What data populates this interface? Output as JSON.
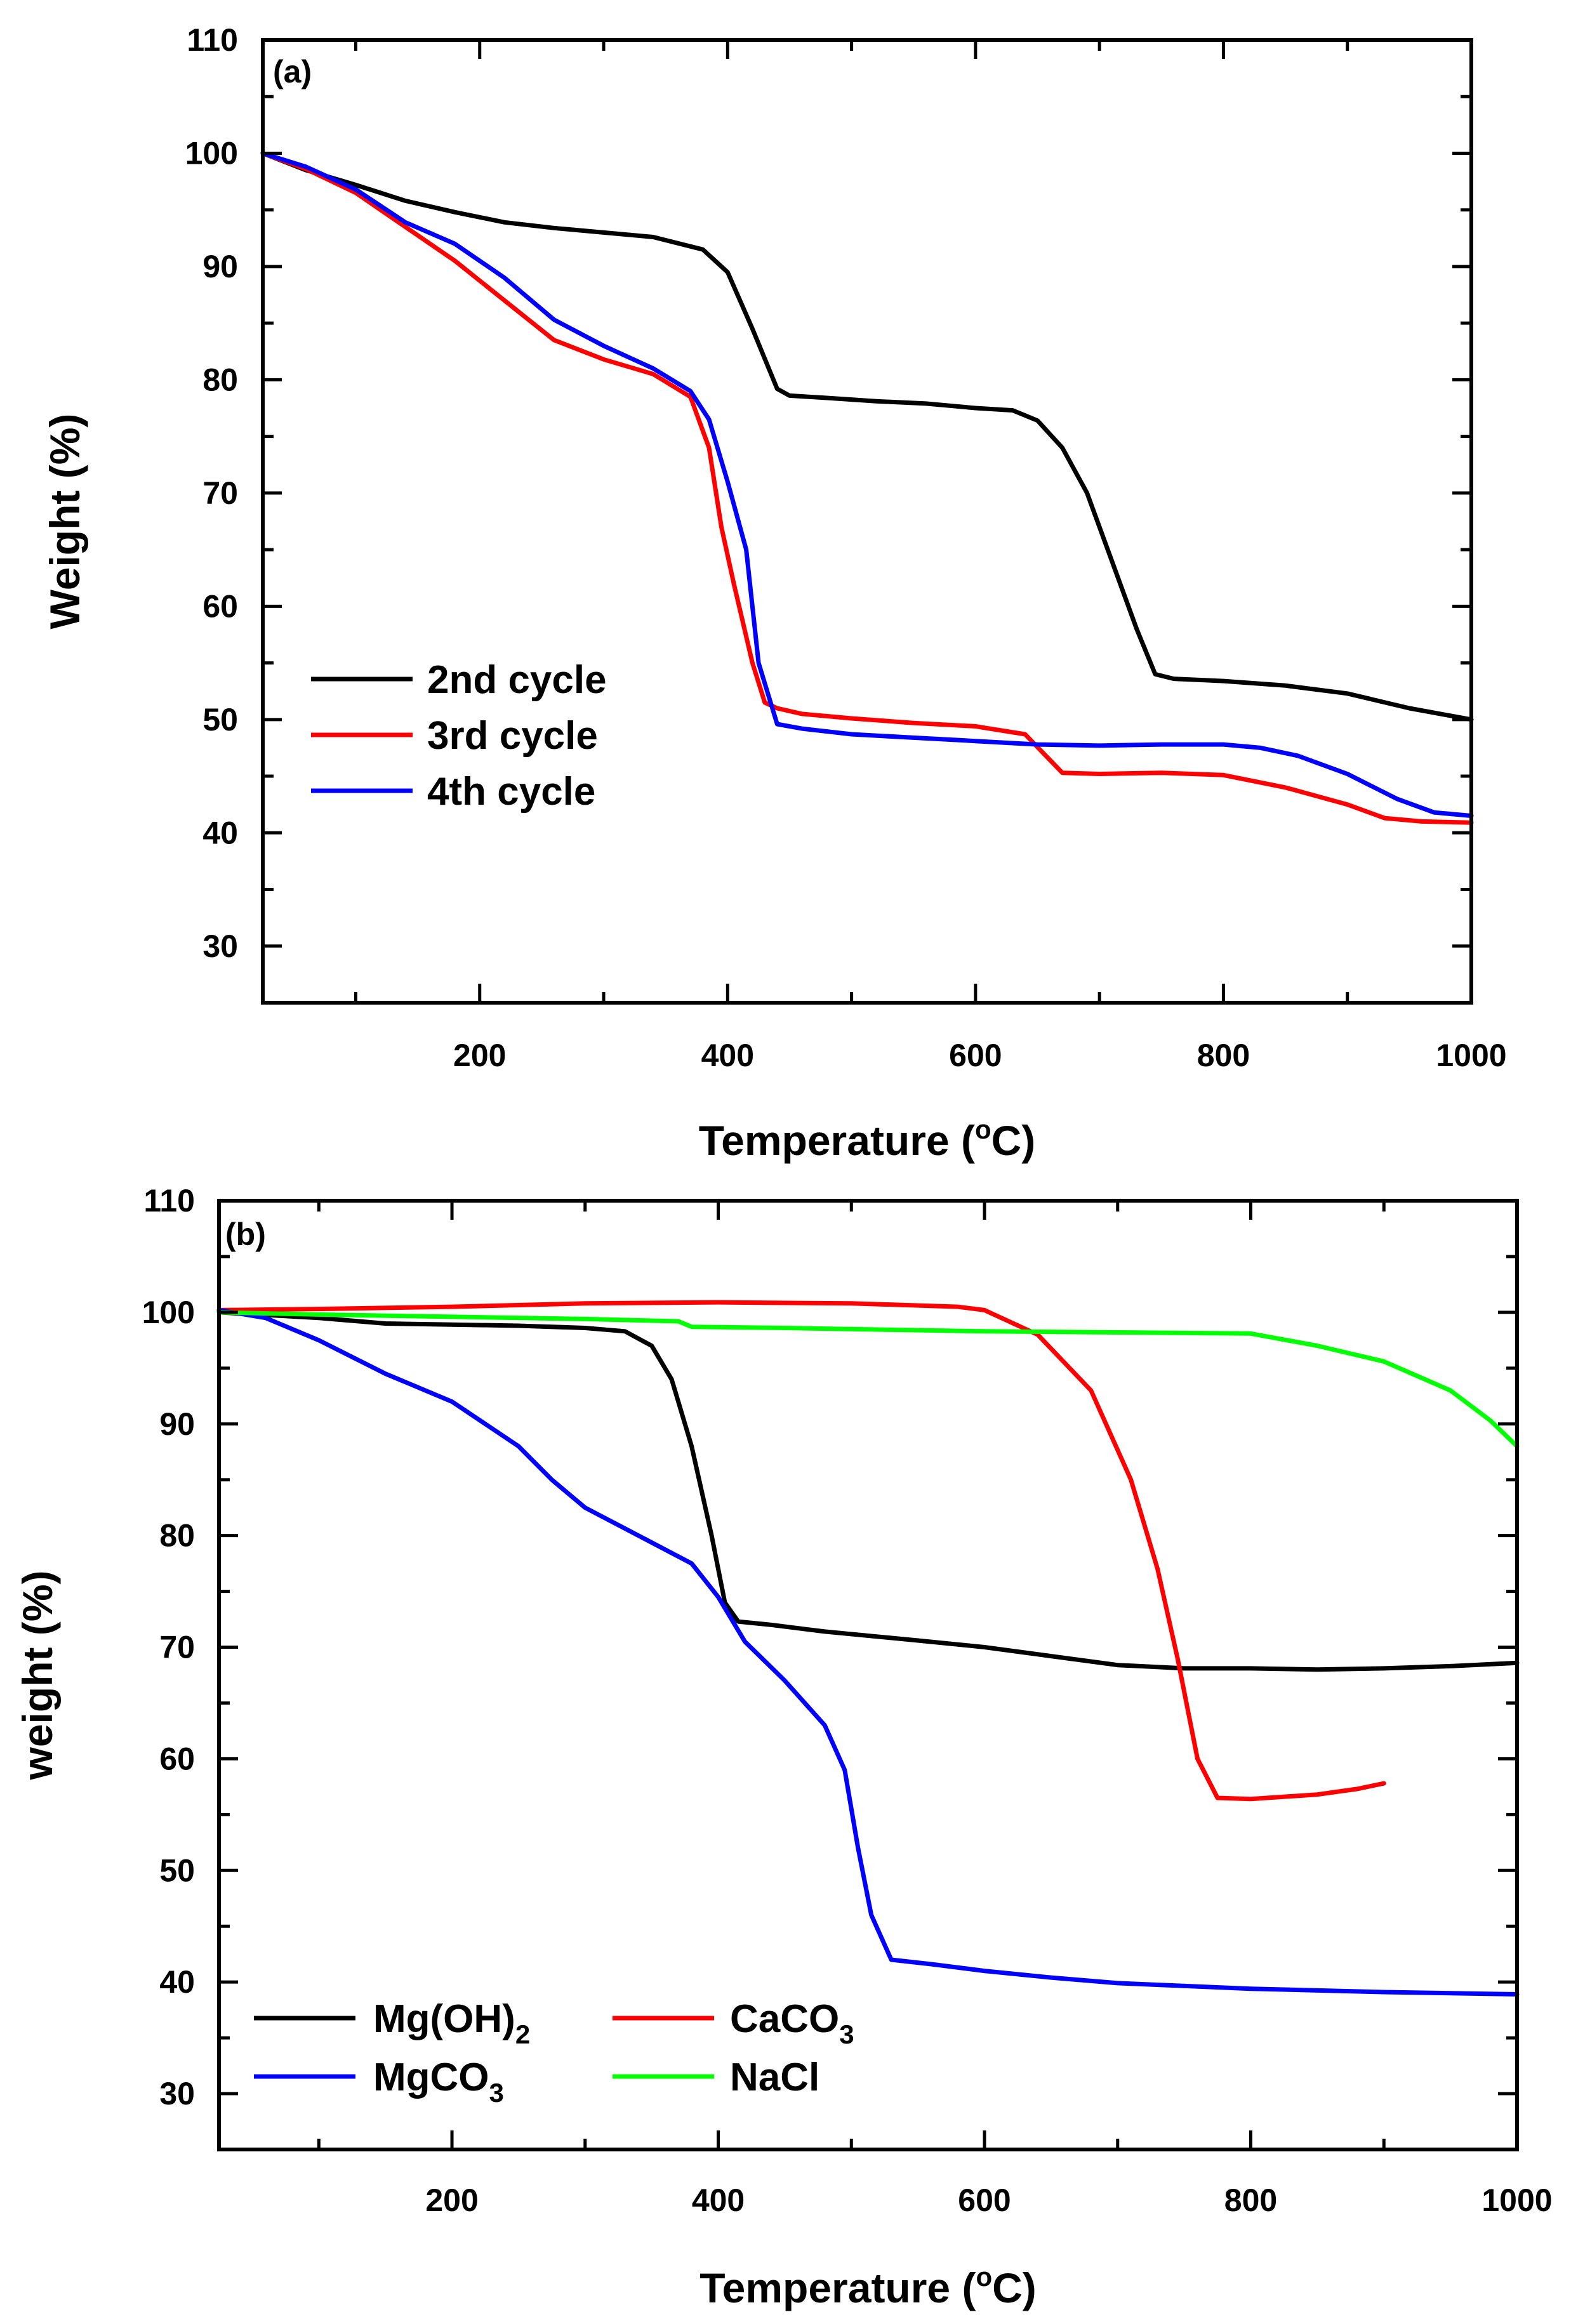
{
  "chart_data": [
    {
      "type": "line",
      "panel_label": "(a)",
      "xlabel": "Temperature (°C)",
      "xlabel_parts": {
        "before": "Temperature (",
        "sup": "o",
        "after": "C)"
      },
      "ylabel": "Weight (%)",
      "xlim": [
        25,
        1000
      ],
      "ylim": [
        25,
        110
      ],
      "x_ticks": [
        200,
        400,
        600,
        800,
        1000
      ],
      "y_ticks": [
        30,
        40,
        50,
        60,
        70,
        80,
        90,
        100,
        110
      ],
      "legend_position": "center-left",
      "series": [
        {
          "name": "2nd cycle",
          "color": "#000000",
          "x": [
            25,
            60,
            100,
            140,
            180,
            220,
            260,
            300,
            340,
            380,
            400,
            420,
            440,
            450,
            480,
            520,
            560,
            600,
            630,
            650,
            670,
            690,
            710,
            730,
            745,
            760,
            800,
            850,
            900,
            950,
            1000
          ],
          "y": [
            100,
            98.5,
            97.2,
            95.8,
            94.8,
            93.9,
            93.4,
            93,
            92.6,
            91.5,
            89.5,
            84.5,
            79.2,
            78.6,
            78.4,
            78.1,
            77.9,
            77.5,
            77.3,
            76.4,
            74,
            70,
            64,
            58,
            54,
            53.6,
            53.4,
            53,
            52.3,
            51,
            50
          ]
        },
        {
          "name": "3rd cycle",
          "color": "#ff0000",
          "x": [
            25,
            60,
            100,
            140,
            180,
            220,
            260,
            300,
            340,
            370,
            385,
            395,
            405,
            420,
            430,
            440,
            460,
            500,
            550,
            600,
            640,
            655,
            670,
            700,
            750,
            800,
            850,
            900,
            930,
            960,
            1000
          ],
          "y": [
            100,
            98.6,
            96.5,
            93.5,
            90.5,
            87,
            83.5,
            81.8,
            80.5,
            78.5,
            74,
            67,
            62,
            55,
            51.5,
            51,
            50.5,
            50.1,
            49.7,
            49.4,
            48.7,
            47,
            45.3,
            45.2,
            45.3,
            45.1,
            44,
            42.5,
            41.3,
            41,
            40.9
          ]
        },
        {
          "name": "4th cycle",
          "color": "#0000ff",
          "x": [
            25,
            60,
            100,
            140,
            180,
            220,
            260,
            300,
            340,
            370,
            385,
            400,
            415,
            425,
            440,
            460,
            500,
            550,
            600,
            650,
            700,
            750,
            800,
            830,
            860,
            900,
            940,
            970,
            1000
          ],
          "y": [
            100,
            98.8,
            96.8,
            93.9,
            92,
            89,
            85.3,
            83,
            81,
            79,
            76.5,
            71,
            65,
            55,
            49.6,
            49.2,
            48.7,
            48.4,
            48.1,
            47.8,
            47.7,
            47.8,
            47.8,
            47.5,
            46.8,
            45.2,
            43,
            41.8,
            41.5
          ]
        }
      ]
    },
    {
      "type": "line",
      "panel_label": "(b)",
      "xlabel": "Temperature (°C)",
      "xlabel_parts": {
        "before": "Temperature (",
        "sup": "o",
        "after": "C)"
      },
      "ylabel": "weight (%)",
      "xlim": [
        25,
        1000
      ],
      "ylim": [
        25,
        110
      ],
      "x_ticks": [
        200,
        400,
        600,
        800,
        1000
      ],
      "y_ticks": [
        30,
        40,
        50,
        60,
        70,
        80,
        90,
        100,
        110
      ],
      "legend_position": "bottom-left",
      "series": [
        {
          "name": "Mg(OH)2",
          "label_main": "Mg(OH)",
          "label_sub": "2",
          "color": "#000000",
          "x": [
            25,
            100,
            150,
            200,
            250,
            300,
            330,
            350,
            365,
            380,
            395,
            405,
            415,
            440,
            480,
            550,
            600,
            650,
            700,
            750,
            800,
            850,
            900,
            950,
            1000
          ],
          "y": [
            100,
            99.5,
            99,
            98.9,
            98.8,
            98.6,
            98.3,
            97,
            94,
            88,
            80,
            74,
            72.3,
            72,
            71.4,
            70.6,
            70,
            69.2,
            68.4,
            68.1,
            68.1,
            68,
            68.1,
            68.3,
            68.6
          ]
        },
        {
          "name": "CaCO3",
          "label_main": "CaCO",
          "label_sub": "3",
          "color": "#ff0000",
          "x": [
            25,
            100,
            200,
            300,
            400,
            500,
            580,
            600,
            640,
            680,
            710,
            730,
            745,
            760,
            775,
            800,
            850,
            880,
            900
          ],
          "y": [
            100.2,
            100.3,
            100.5,
            100.8,
            100.9,
            100.8,
            100.5,
            100.2,
            98,
            93,
            85,
            77,
            69,
            60,
            56.5,
            56.4,
            56.8,
            57.3,
            57.8
          ]
        },
        {
          "name": "MgCO3",
          "label_main": "MgCO",
          "label_sub": "3",
          "color": "#0000ff",
          "x": [
            25,
            60,
            100,
            150,
            200,
            250,
            275,
            300,
            340,
            380,
            400,
            420,
            450,
            480,
            495,
            505,
            515,
            530,
            560,
            600,
            650,
            700,
            800,
            900,
            1000
          ],
          "y": [
            100.2,
            99.5,
            97.5,
            94.5,
            92,
            88,
            85,
            82.5,
            80,
            77.5,
            74.5,
            70.5,
            67,
            63,
            59,
            52,
            46,
            42,
            41.6,
            41,
            40.4,
            39.9,
            39.4,
            39.1,
            38.9
          ]
        },
        {
          "name": "NaCl",
          "label_main": "NaCl",
          "label_sub": "",
          "color": "#00ff00",
          "x": [
            25,
            100,
            200,
            300,
            370,
            380,
            450,
            600,
            700,
            800,
            850,
            900,
            950,
            980,
            1000
          ],
          "y": [
            100,
            99.8,
            99.6,
            99.4,
            99.2,
            98.7,
            98.6,
            98.3,
            98.2,
            98.1,
            97,
            95.6,
            93,
            90.3,
            88
          ]
        }
      ]
    }
  ]
}
